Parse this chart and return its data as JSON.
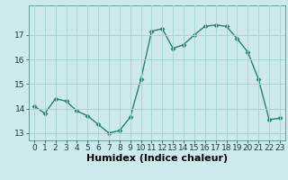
{
  "x": [
    0,
    1,
    2,
    3,
    4,
    5,
    6,
    7,
    8,
    9,
    10,
    11,
    12,
    13,
    14,
    15,
    16,
    17,
    18,
    19,
    20,
    21,
    22,
    23
  ],
  "y": [
    14.1,
    13.8,
    14.4,
    14.3,
    13.9,
    13.7,
    13.35,
    13.0,
    13.1,
    13.65,
    15.2,
    17.15,
    17.25,
    16.45,
    16.6,
    17.0,
    17.35,
    17.4,
    17.35,
    16.85,
    16.3,
    15.2,
    13.55,
    13.6
  ],
  "line_color": "#2d7d6e",
  "marker": "D",
  "marker_size": 2.5,
  "bg_color": "#cceaea",
  "grid_color": "#aad4d4",
  "xlabel": "Humidex (Indice chaleur)",
  "ylim": [
    12.7,
    18.2
  ],
  "xlim": [
    -0.5,
    23.5
  ],
  "yticks": [
    13,
    14,
    15,
    16,
    17
  ],
  "xticks": [
    0,
    1,
    2,
    3,
    4,
    5,
    6,
    7,
    8,
    9,
    10,
    11,
    12,
    13,
    14,
    15,
    16,
    17,
    18,
    19,
    20,
    21,
    22,
    23
  ],
  "xlabel_fontsize": 8,
  "tick_fontsize": 6.5,
  "line_width": 1.0
}
